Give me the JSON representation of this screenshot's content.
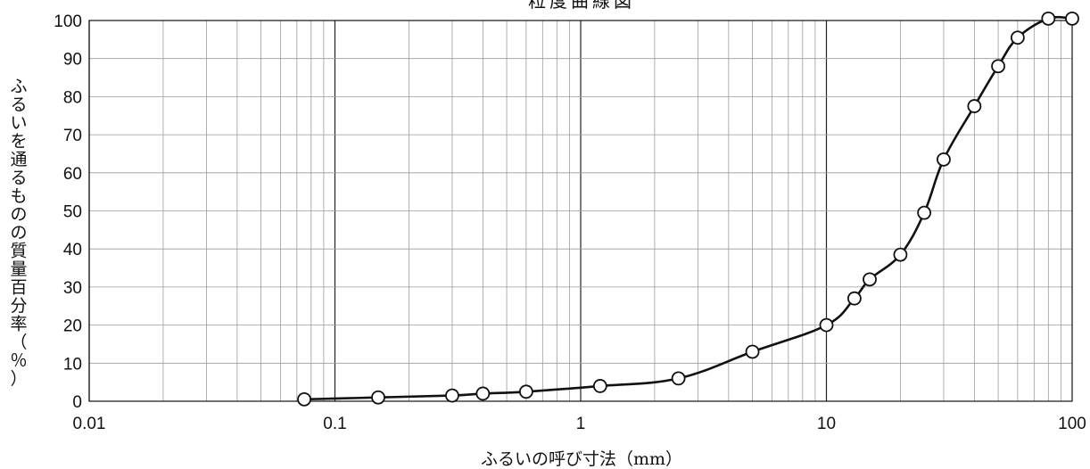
{
  "chart_data": {
    "type": "line",
    "title": "粒度曲線図",
    "xlabel": "ふるいの呼び寸法（mm）",
    "ylabel": "ふるいを通るものの質量百分率（％）",
    "x_scale": "log",
    "xlim": [
      0.01,
      100
    ],
    "ylim": [
      0,
      100
    ],
    "grid": true,
    "legend": "none",
    "x_ticks": [
      "0.01",
      "0.1",
      "1",
      "10",
      "100"
    ],
    "y_ticks": [
      "0",
      "10",
      "20",
      "30",
      "40",
      "50",
      "60",
      "70",
      "80",
      "90",
      "100"
    ],
    "series": [
      {
        "x": [
          0.075,
          0.15,
          0.3,
          0.4,
          0.6,
          1.2,
          2.5,
          5,
          10,
          13,
          15,
          20,
          25,
          30,
          40,
          50,
          60,
          80,
          100
        ],
        "y": [
          0.5,
          1,
          1.5,
          2,
          2.5,
          4,
          6,
          13,
          20,
          27,
          32,
          38.5,
          49.5,
          63.5,
          77.5,
          88,
          95.5,
          100.5,
          100.5
        ]
      }
    ],
    "colors": {
      "line": "#111111",
      "marker_fill": "#ffffff",
      "grid": "#9a9a9a",
      "axis": "#111111"
    }
  }
}
